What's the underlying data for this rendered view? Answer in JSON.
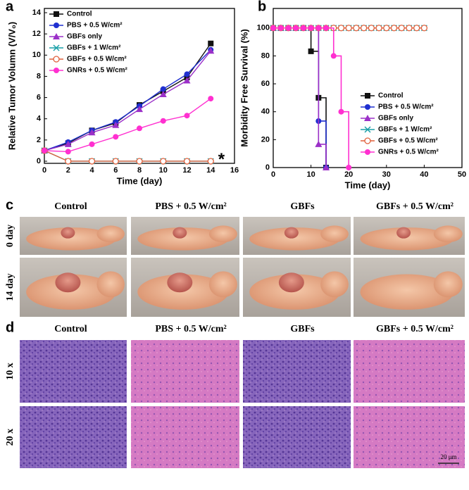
{
  "chart_data": [
    {
      "type": "line",
      "label": "a",
      "xlabel": "Time (day)",
      "ylabel": "Relative Tumor Volumn (V/V₀)",
      "x": [
        0,
        2,
        4,
        6,
        8,
        10,
        12,
        14
      ],
      "xlim": [
        0,
        16
      ],
      "xticks": [
        0,
        2,
        4,
        6,
        8,
        10,
        12,
        14,
        16
      ],
      "ylim": [
        -0.2,
        14.4
      ],
      "yticks": [
        0,
        2,
        4,
        6,
        8,
        10,
        12,
        14
      ],
      "legend": "upper-left",
      "annotation": "*",
      "series": [
        {
          "name": "Control",
          "color": "#111111",
          "marker": "square",
          "values": [
            1,
            1.7,
            2.9,
            3.6,
            5.3,
            6.6,
            7.9,
            11.1
          ]
        },
        {
          "name": "PBS + 0.5 W/cm²",
          "color": "#1f2fd0",
          "marker": "circle",
          "values": [
            1,
            1.8,
            2.9,
            3.7,
            5.2,
            6.8,
            8.2,
            10.5
          ]
        },
        {
          "name": "GBFs only",
          "color": "#9b30c8",
          "marker": "triangle",
          "values": [
            1,
            1.6,
            2.7,
            3.4,
            4.9,
            6.3,
            7.6,
            10.4
          ]
        },
        {
          "name": "GBFs + 1 W/cm²",
          "color": "#1aa0a8",
          "marker": "x",
          "values": [
            1,
            0,
            0,
            0,
            0,
            0,
            0,
            0
          ]
        },
        {
          "name": "GBFs + 0.5 W/cm²",
          "color": "#e0603c",
          "marker": "open-circle",
          "values": [
            1,
            0,
            0,
            0,
            0,
            0,
            0,
            0
          ]
        },
        {
          "name": "GNRs + 0.5 W/cm²",
          "color": "#ff30d0",
          "marker": "circle",
          "values": [
            1,
            0.9,
            1.6,
            2.3,
            3.1,
            3.8,
            4.3,
            5.9
          ]
        }
      ]
    },
    {
      "type": "step",
      "label": "b",
      "xlabel": "Time (day)",
      "ylabel": "Morbidity Free Survival (%)",
      "xlim": [
        0,
        50
      ],
      "xticks": [
        0,
        10,
        20,
        30,
        40,
        50
      ],
      "ylim": [
        0,
        114
      ],
      "yticks": [
        0,
        20,
        40,
        60,
        80,
        100
      ],
      "legend": "lower-right",
      "series": [
        {
          "name": "Control",
          "color": "#111111",
          "marker": "square",
          "x": [
            0,
            2,
            4,
            6,
            8,
            10,
            12,
            14
          ],
          "values": [
            100,
            100,
            100,
            100,
            100,
            83.3,
            50,
            0
          ]
        },
        {
          "name": "PBS + 0.5 W/cm²",
          "color": "#1f2fd0",
          "marker": "circle",
          "x": [
            0,
            2,
            4,
            6,
            8,
            10,
            12,
            14
          ],
          "values": [
            100,
            100,
            100,
            100,
            100,
            100,
            33.3,
            0
          ]
        },
        {
          "name": "GBFs only",
          "color": "#9b30c8",
          "marker": "triangle",
          "x": [
            0,
            2,
            4,
            6,
            8,
            10,
            12,
            14
          ],
          "values": [
            100,
            100,
            100,
            100,
            100,
            100,
            16.7,
            0
          ]
        },
        {
          "name": "GBFs + 1 W/cm²",
          "color": "#1aa0a8",
          "marker": "x",
          "x": [
            0,
            2,
            4,
            6,
            8,
            10,
            12,
            14,
            16,
            18,
            20,
            22,
            24,
            26,
            28,
            30,
            32,
            34,
            36,
            38,
            40
          ],
          "values": [
            100,
            100,
            100,
            100,
            100,
            100,
            100,
            100,
            100,
            100,
            100,
            100,
            100,
            100,
            100,
            100,
            100,
            100,
            100,
            100,
            100
          ]
        },
        {
          "name": "GBFs + 0.5 W/cm²",
          "color": "#e0603c",
          "marker": "open-circle",
          "x": [
            0,
            2,
            4,
            6,
            8,
            10,
            12,
            14,
            16,
            18,
            20,
            22,
            24,
            26,
            28,
            30,
            32,
            34,
            36,
            38,
            40
          ],
          "values": [
            100,
            100,
            100,
            100,
            100,
            100,
            100,
            100,
            100,
            100,
            100,
            100,
            100,
            100,
            100,
            100,
            100,
            100,
            100,
            100,
            100
          ]
        },
        {
          "name": "GNRs + 0.5 W/cm²",
          "color": "#ff30d0",
          "marker": "circle",
          "x": [
            0,
            2,
            4,
            6,
            8,
            10,
            12,
            14,
            16,
            18,
            20
          ],
          "values": [
            100,
            100,
            100,
            100,
            100,
            100,
            100,
            100,
            80,
            40,
            0
          ]
        }
      ]
    }
  ],
  "photos": {
    "label": "c",
    "columns": [
      "Control",
      "PBS + 0.5 W/cm²",
      "GBFs",
      "GBFs + 0.5 W/cm²"
    ],
    "rows": [
      "0 day",
      "14 day"
    ]
  },
  "histology": {
    "label": "d",
    "columns": [
      "Control",
      "PBS + 0.5 W/cm²",
      "GBFs",
      "GBFs + 0.5 W/cm²"
    ],
    "rows": [
      "10 x",
      "20 x"
    ],
    "scale_bar": "20 μm"
  }
}
